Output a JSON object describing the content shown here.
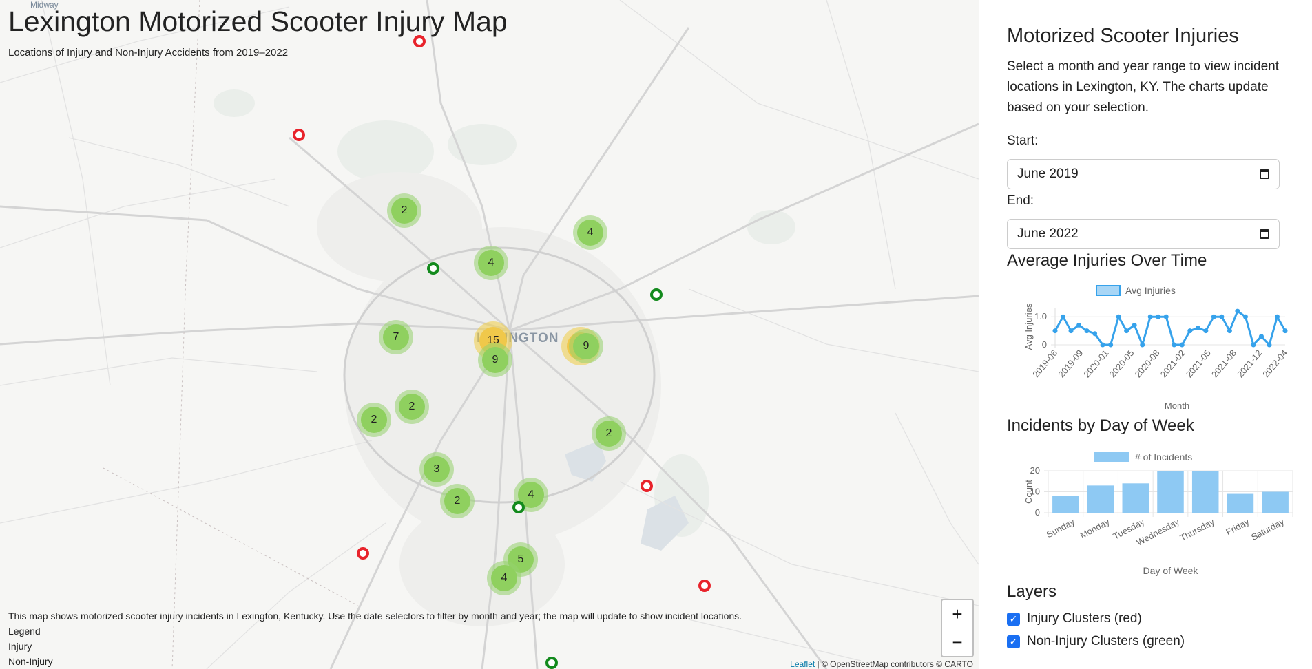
{
  "map": {
    "title": "Lexington Motorized Scooter Injury Map",
    "subtitle": "Locations of Injury and Non-Injury Accidents from 2019–2022",
    "places": {
      "midway": "Midway",
      "city": "LEXINGTON"
    },
    "clusters": [
      {
        "count": "2",
        "color": "green"
      },
      {
        "count": "4",
        "color": "green"
      },
      {
        "count": "4",
        "color": "green"
      },
      {
        "count": "7",
        "color": "green"
      },
      {
        "count": "15",
        "color": "yellow"
      },
      {
        "count": "9",
        "color": "green"
      },
      {
        "count": "",
        "color": "yellow"
      },
      {
        "count": "9",
        "color": "green"
      },
      {
        "count": "2",
        "color": "green"
      },
      {
        "count": "2",
        "color": "green"
      },
      {
        "count": "2",
        "color": "green"
      },
      {
        "count": "3",
        "color": "green"
      },
      {
        "count": "2",
        "color": "green"
      },
      {
        "count": "4",
        "color": "green"
      },
      {
        "count": "5",
        "color": "green"
      },
      {
        "count": "4",
        "color": "green"
      }
    ],
    "markers": [
      "red",
      "red",
      "green",
      "green",
      "red",
      "green",
      "red",
      "red",
      "green"
    ],
    "zoom_in": "+",
    "zoom_out": "−",
    "info": "This map shows motorized scooter injury incidents in Lexington, Kentucky. Use the date selectors to filter by month and year; the map will update to show incident locations.",
    "legend_title": "Legend",
    "legend_injury": "Injury",
    "legend_noninjury": "Non-Injury",
    "attribution_link": "Leaflet",
    "attribution_text": "| © OpenStreetMap contributors © CARTO"
  },
  "panel": {
    "title": "Motorized Scooter Injuries",
    "description": "Select a month and year range to view incident locations in Lexington, KY. The charts update based on your selection.",
    "start_label": "Start:",
    "start_value": "June 2019",
    "end_label": "End:",
    "end_value": "June 2022",
    "chart1_title": "Average Injuries Over Time",
    "chart2_title": "Incidents by Day of Week",
    "layers_title": "Layers",
    "layer_injury": "Injury Clusters (red)",
    "layer_noninjury": "Non-Injury Clusters (green)"
  },
  "chart_data": [
    {
      "type": "line",
      "legend": "Avg Injuries",
      "xlabel": "Month",
      "ylabel": "Avg Injuries",
      "tick_labels": [
        "2019-06",
        "2019-09",
        "2020-01",
        "2020-05",
        "2020-08",
        "2021-02",
        "2021-05",
        "2021-08",
        "2021-12",
        "2022-04"
      ],
      "ylim": [
        0,
        1.3
      ],
      "yticks": [
        "0",
        "1.0"
      ],
      "values": [
        0.5,
        1.0,
        0.5,
        0.7,
        0.5,
        0.4,
        0,
        0,
        1.0,
        0.5,
        0.7,
        0,
        1.0,
        1.0,
        1.0,
        0,
        0,
        0.5,
        0.6,
        0.5,
        1.0,
        1.0,
        0.5,
        1.2,
        1.0,
        0,
        0.3,
        0,
        1.0,
        0.5
      ],
      "color": "#36a2eb"
    },
    {
      "type": "bar",
      "legend": "# of Incidents",
      "xlabel": "Day of Week",
      "ylabel": "Count",
      "categories": [
        "Sunday",
        "Monday",
        "Tuesday",
        "Wednesday",
        "Thursday",
        "Friday",
        "Saturday"
      ],
      "values": [
        8,
        13,
        14,
        20,
        20,
        9,
        10
      ],
      "ylim": [
        0,
        20
      ],
      "yticks": [
        "0",
        "10",
        "20"
      ],
      "color": "#8ec9f3"
    }
  ]
}
